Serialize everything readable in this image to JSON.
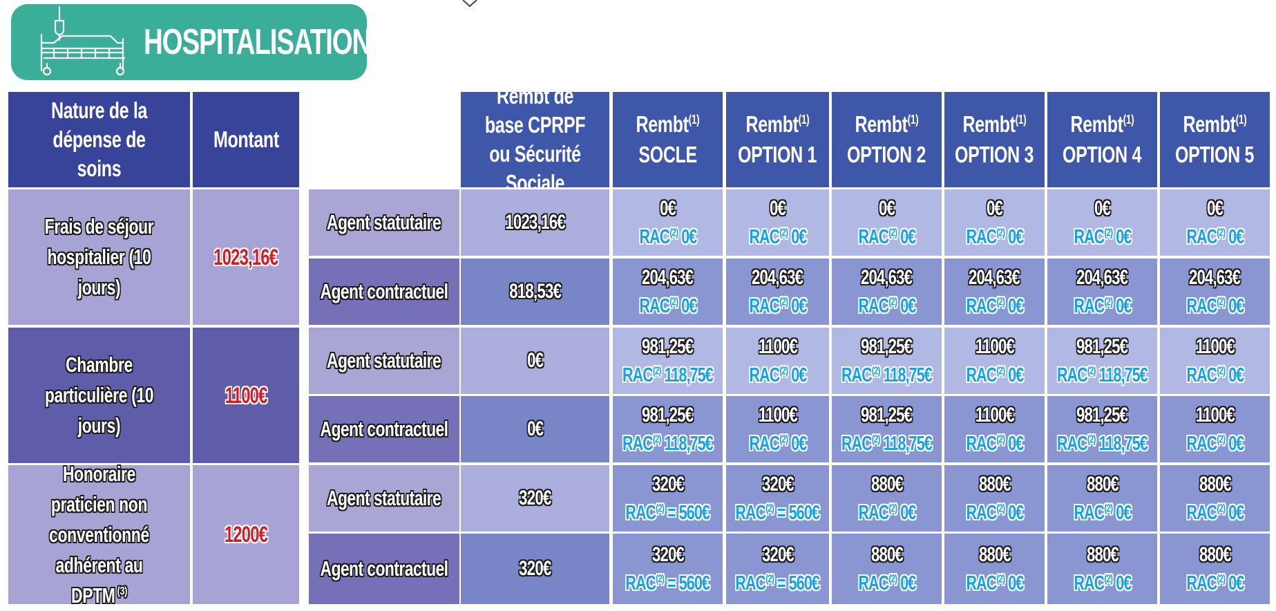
{
  "header": {
    "title": "HOSPITALISATION",
    "icon": "hospital-bed-icon",
    "color": "#3aae99"
  },
  "table": {
    "columns": {
      "nature": "Nature de la dépense de soins",
      "montant": "Montant",
      "base": "Rembt de base CPRPF ou Sécurité Sociale",
      "rembt_label": "Rembt",
      "rembt_sup": "(1)",
      "options": [
        "SOCLE",
        "OPTION 1",
        "OPTION 2",
        "OPTION 3",
        "OPTION 4",
        "OPTION 5"
      ]
    },
    "rac_label": "RAC",
    "rac_sup": "(2)",
    "groups": [
      {
        "nature": "Frais de séjour hospitalier (10 jours)",
        "nature_sup": "",
        "montant": "1023,16€",
        "rows": [
          {
            "agent": "Agent statutaire",
            "base": "1023,16€",
            "values": [
              {
                "amount": "0€",
                "rac": " 0€"
              },
              {
                "amount": "0€",
                "rac": " 0€"
              },
              {
                "amount": "0€",
                "rac": " 0€"
              },
              {
                "amount": "0€",
                "rac": " 0€"
              },
              {
                "amount": "0€",
                "rac": " 0€"
              },
              {
                "amount": "0€",
                "rac": " 0€"
              }
            ]
          },
          {
            "agent": "Agent contractuel",
            "base": "818,53€",
            "values": [
              {
                "amount": "204,63€",
                "rac": " 0€"
              },
              {
                "amount": "204,63€",
                "rac": " 0€"
              },
              {
                "amount": "204,63€",
                "rac": " 0€"
              },
              {
                "amount": "204,63€",
                "rac": " 0€"
              },
              {
                "amount": "204,63€",
                "rac": " 0€"
              },
              {
                "amount": "204,63€",
                "rac": " 0€"
              }
            ]
          }
        ]
      },
      {
        "nature": "Chambre particulière (10 jours)",
        "nature_sup": "",
        "montant": "1100€",
        "rows": [
          {
            "agent": "Agent statutaire",
            "base": "0€",
            "values": [
              {
                "amount": "981,25€",
                "rac": " 118,75€"
              },
              {
                "amount": "1100€",
                "rac": " 0€"
              },
              {
                "amount": "981,25€",
                "rac": " 118,75€"
              },
              {
                "amount": "1100€",
                "rac": " 0€"
              },
              {
                "amount": "981,25€",
                "rac": " 118,75€"
              },
              {
                "amount": "1100€",
                "rac": " 0€"
              }
            ]
          },
          {
            "agent": "Agent contractuel",
            "base": "0€",
            "values": [
              {
                "amount": "981,25€",
                "rac": " 118,75€"
              },
              {
                "amount": "1100€",
                "rac": " 0€"
              },
              {
                "amount": "981,25€",
                "rac": " 118,75€"
              },
              {
                "amount": "1100€",
                "rac": " 0€"
              },
              {
                "amount": "981,25€",
                "rac": " 118,75€"
              },
              {
                "amount": "1100€",
                "rac": " 0€"
              }
            ]
          }
        ]
      },
      {
        "nature": "Honoraire praticien non conventionné adhérent au DPTM",
        "nature_sup": "(3)",
        "montant": "1200€",
        "rows": [
          {
            "agent": "Agent statutaire",
            "base": "320€",
            "values": [
              {
                "amount": "320€",
                "rac": " = 560€"
              },
              {
                "amount": "320€",
                "rac": " = 560€"
              },
              {
                "amount": "880€",
                "rac": " 0€"
              },
              {
                "amount": "880€",
                "rac": " 0€"
              },
              {
                "amount": "880€",
                "rac": " 0€"
              },
              {
                "amount": "880€",
                "rac": " 0€"
              }
            ]
          },
          {
            "agent": "Agent contractuel",
            "base": "320€",
            "values": [
              {
                "amount": "320€",
                "rac": " = 560€"
              },
              {
                "amount": "320€",
                "rac": " = 560€"
              },
              {
                "amount": "880€",
                "rac": " 0€"
              },
              {
                "amount": "880€",
                "rac": " 0€"
              },
              {
                "amount": "880€",
                "rac": " 0€"
              },
              {
                "amount": "880€",
                "rac": " 0€"
              }
            ]
          }
        ]
      }
    ]
  }
}
